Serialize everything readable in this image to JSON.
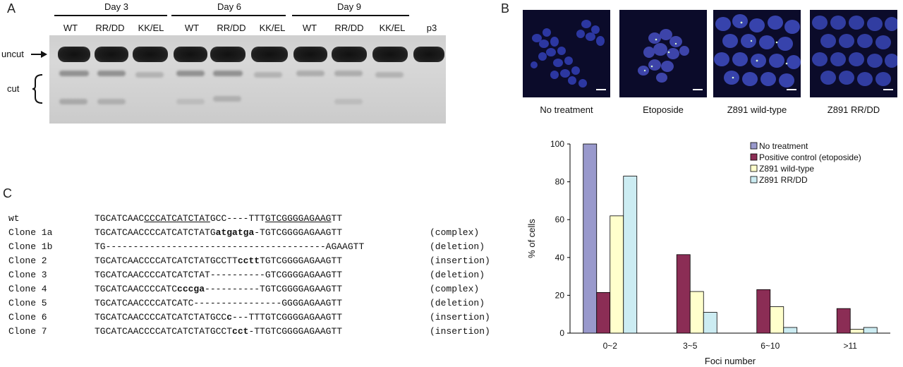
{
  "panelA": {
    "label": "A",
    "days": [
      "Day 3",
      "Day 6",
      "Day 9"
    ],
    "lanes": [
      "WT",
      "RR/DD",
      "KK/EL",
      "WT",
      "RR/DD",
      "KK/EL",
      "WT",
      "RR/DD",
      "KK/EL",
      "p3"
    ],
    "uncut_label": "uncut",
    "cut_label": "cut"
  },
  "panelB": {
    "label": "B",
    "captions": [
      "No treatment",
      "Etoposide",
      "Z891 wild-type",
      "Z891 RR/DD"
    ]
  },
  "panelC": {
    "label": "C",
    "rows": [
      {
        "name": "wt",
        "segments": [
          {
            "t": "TGCATCAAC",
            "s": ""
          },
          {
            "t": "CCCATCATCTAT",
            "s": "u"
          },
          {
            "t": "GCC----TTT",
            "s": ""
          },
          {
            "t": "GTCGGGGAGAAG",
            "s": "u"
          },
          {
            "t": "TT",
            "s": ""
          }
        ],
        "note": ""
      },
      {
        "name": "Clone 1a",
        "segments": [
          {
            "t": "TGCATCAACCCCATCATCTATG",
            "s": ""
          },
          {
            "t": "atgatga",
            "s": "b"
          },
          {
            "t": "-TGTCGGGGAGAAGTT",
            "s": ""
          }
        ],
        "note": "(complex)"
      },
      {
        "name": "Clone 1b",
        "segments": [
          {
            "t": "TG----------------------------------------AGAAGTT",
            "s": ""
          }
        ],
        "note": "(deletion)"
      },
      {
        "name": "Clone 2",
        "segments": [
          {
            "t": "TGCATCAACCCCATCATCTATGCCTT",
            "s": ""
          },
          {
            "t": "cctt",
            "s": "b"
          },
          {
            "t": "TGTCGGGGAGAAGTT",
            "s": ""
          }
        ],
        "note": "(insertion)"
      },
      {
        "name": "Clone 3",
        "segments": [
          {
            "t": "TGCATCAACCCCATCATCTAT----------GTCGGGGAGAAGTT",
            "s": ""
          }
        ],
        "note": "(deletion)"
      },
      {
        "name": "Clone 4",
        "segments": [
          {
            "t": "TGCATCAACCCCATC",
            "s": ""
          },
          {
            "t": "cccga",
            "s": "b"
          },
          {
            "t": "----------TGTCGGGGAGAAGTT",
            "s": ""
          }
        ],
        "note": "(complex)"
      },
      {
        "name": "Clone 5",
        "segments": [
          {
            "t": "TGCATCAACCCCATCATC----------------GGGGAGAAGTT",
            "s": ""
          }
        ],
        "note": "(deletion)"
      },
      {
        "name": "Clone 6",
        "segments": [
          {
            "t": "TGCATCAACCCCATCATCTATGCC",
            "s": ""
          },
          {
            "t": "c",
            "s": "b"
          },
          {
            "t": "---TTTGTCGGGGAGAAGTT",
            "s": ""
          }
        ],
        "note": "(insertion)"
      },
      {
        "name": "Clone 7",
        "segments": [
          {
            "t": "TGCATCAACCCCATCATCTATGCCT",
            "s": ""
          },
          {
            "t": "cct",
            "s": "b"
          },
          {
            "t": "-TTGTCGGGGAGAAGTT",
            "s": ""
          }
        ],
        "note": "(insertion)"
      }
    ]
  },
  "chart_data": {
    "type": "bar",
    "categories": [
      "0~2",
      "3~5",
      "6~10",
      ">11"
    ],
    "series": [
      {
        "name": "No treatment",
        "values": [
          100,
          0,
          0,
          0
        ],
        "color": "#9999cc"
      },
      {
        "name": "Positive control (etoposide)",
        "values": [
          21.5,
          41.5,
          23,
          13
        ],
        "color": "#8b2d55"
      },
      {
        "name": "Z891 wild-type",
        "values": [
          62,
          22,
          14,
          2
        ],
        "color": "#ffffcc"
      },
      {
        "name": "Z891 RR/DD",
        "values": [
          83,
          11,
          3,
          3
        ],
        "color": "#ccecf2"
      }
    ],
    "xlabel": "Foci number",
    "ylabel": "% of cells",
    "ylim": [
      0,
      100
    ],
    "yticks": [
      0,
      20,
      40,
      60,
      80,
      100
    ],
    "legend": "top-right"
  }
}
